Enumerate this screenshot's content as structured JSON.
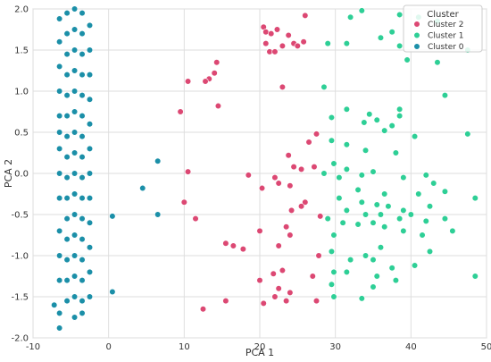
{
  "chart_data": {
    "type": "scatter",
    "title": "",
    "xlabel": "PCA 1",
    "ylabel": "PCA 2",
    "xlim": [
      -10,
      50
    ],
    "ylim": [
      -2.0,
      2.0
    ],
    "xticks": [
      -10,
      0,
      10,
      20,
      30,
      40,
      50
    ],
    "yticks": [
      -2.0,
      -1.5,
      -1.0,
      -0.5,
      0.0,
      0.5,
      1.0,
      1.5,
      2.0
    ],
    "grid": true,
    "legend": {
      "title": "Cluster",
      "position": "top-right"
    },
    "series": [
      {
        "name": "Cluster 2",
        "color": "#dc4873",
        "points": [
          [
            20.5,
            1.78
          ],
          [
            20.8,
            1.72
          ],
          [
            21.5,
            1.7
          ],
          [
            22.3,
            1.75
          ],
          [
            23.0,
            1.55
          ],
          [
            23.8,
            1.68
          ],
          [
            24.5,
            1.58
          ],
          [
            25.0,
            1.55
          ],
          [
            25.8,
            1.6
          ],
          [
            26.0,
            1.92
          ],
          [
            20.8,
            1.58
          ],
          [
            21.3,
            1.48
          ],
          [
            22.0,
            1.48
          ],
          [
            23.0,
            1.05
          ],
          [
            14.0,
            1.22
          ],
          [
            14.3,
            1.35
          ],
          [
            13.3,
            1.15
          ],
          [
            14.5,
            0.82
          ],
          [
            10.5,
            1.12
          ],
          [
            12.8,
            1.12
          ],
          [
            9.5,
            0.75
          ],
          [
            26.5,
            0.38
          ],
          [
            27.5,
            0.48
          ],
          [
            23.8,
            0.22
          ],
          [
            10.5,
            0.02
          ],
          [
            18.5,
            -0.02
          ],
          [
            20.3,
            -0.18
          ],
          [
            22.0,
            -0.05
          ],
          [
            24.5,
            0.08
          ],
          [
            25.5,
            0.05
          ],
          [
            27.2,
            0.08
          ],
          [
            22.5,
            -0.12
          ],
          [
            24.0,
            -0.15
          ],
          [
            26.0,
            -0.35
          ],
          [
            10.0,
            -0.35
          ],
          [
            11.5,
            -0.55
          ],
          [
            24.2,
            -0.45
          ],
          [
            25.5,
            -0.4
          ],
          [
            28.0,
            -0.52
          ],
          [
            23.5,
            -0.65
          ],
          [
            24.0,
            -0.75
          ],
          [
            20.0,
            -0.7
          ],
          [
            22.5,
            -0.88
          ],
          [
            16.5,
            -0.88
          ],
          [
            17.8,
            -0.92
          ],
          [
            15.5,
            -0.85
          ],
          [
            22.5,
            -1.4
          ],
          [
            24.0,
            -1.45
          ],
          [
            27.8,
            -1.0
          ],
          [
            20.0,
            -1.3
          ],
          [
            15.5,
            -1.55
          ],
          [
            12.5,
            -1.65
          ],
          [
            20.5,
            -1.58
          ],
          [
            22.0,
            -1.5
          ],
          [
            23.5,
            -1.55
          ],
          [
            27.5,
            -1.55
          ],
          [
            27.0,
            -1.25
          ],
          [
            23.0,
            -1.18
          ],
          [
            21.8,
            -1.22
          ]
        ]
      },
      {
        "name": "Cluster 1",
        "color": "#2ecf96",
        "points": [
          [
            32.0,
            1.9
          ],
          [
            33.5,
            1.98
          ],
          [
            38.5,
            1.93
          ],
          [
            41.0,
            1.9
          ],
          [
            43.5,
            1.85
          ],
          [
            36.0,
            1.65
          ],
          [
            37.5,
            1.72
          ],
          [
            29.0,
            1.58
          ],
          [
            31.5,
            1.58
          ],
          [
            38.5,
            1.55
          ],
          [
            47.5,
            1.5
          ],
          [
            39.5,
            1.38
          ],
          [
            43.5,
            1.35
          ],
          [
            28.5,
            1.05
          ],
          [
            44.5,
            0.95
          ],
          [
            31.5,
            0.78
          ],
          [
            34.5,
            0.72
          ],
          [
            38.5,
            0.78
          ],
          [
            38.5,
            0.7
          ],
          [
            29.5,
            0.68
          ],
          [
            33.8,
            0.62
          ],
          [
            35.5,
            0.65
          ],
          [
            37.5,
            0.58
          ],
          [
            36.5,
            0.52
          ],
          [
            40.5,
            0.45
          ],
          [
            47.5,
            0.48
          ],
          [
            29.5,
            0.4
          ],
          [
            31.5,
            0.35
          ],
          [
            34.0,
            0.28
          ],
          [
            38.0,
            0.25
          ],
          [
            29.8,
            0.12
          ],
          [
            31.5,
            0.05
          ],
          [
            35.0,
            0.02
          ],
          [
            28.5,
            0.0
          ],
          [
            30.5,
            -0.05
          ],
          [
            33.5,
            -0.02
          ],
          [
            42.0,
            -0.02
          ],
          [
            39.0,
            -0.05
          ],
          [
            43.0,
            -0.12
          ],
          [
            33.0,
            -0.2
          ],
          [
            36.5,
            -0.25
          ],
          [
            41.0,
            -0.25
          ],
          [
            44.5,
            -0.22
          ],
          [
            30.5,
            -0.3
          ],
          [
            33.5,
            -0.35
          ],
          [
            35.5,
            -0.38
          ],
          [
            37.0,
            -0.4
          ],
          [
            39.0,
            -0.45
          ],
          [
            42.5,
            -0.4
          ],
          [
            48.5,
            -0.3
          ],
          [
            31.5,
            -0.45
          ],
          [
            34.0,
            -0.5
          ],
          [
            36.0,
            -0.5
          ],
          [
            38.5,
            -0.55
          ],
          [
            40.0,
            -0.5
          ],
          [
            42.0,
            -0.58
          ],
          [
            44.5,
            -0.55
          ],
          [
            29.0,
            -0.55
          ],
          [
            31.0,
            -0.6
          ],
          [
            33.0,
            -0.62
          ],
          [
            35.0,
            -0.6
          ],
          [
            36.5,
            -0.65
          ],
          [
            39.0,
            -0.7
          ],
          [
            41.5,
            -0.75
          ],
          [
            45.5,
            -0.7
          ],
          [
            29.8,
            -0.75
          ],
          [
            29.5,
            -0.95
          ],
          [
            29.8,
            -1.2
          ],
          [
            32.0,
            -1.05
          ],
          [
            34.0,
            -1.0
          ],
          [
            36.0,
            -0.9
          ],
          [
            42.5,
            -0.95
          ],
          [
            29.5,
            -1.35
          ],
          [
            29.8,
            -1.5
          ],
          [
            31.5,
            -1.2
          ],
          [
            33.5,
            -1.52
          ],
          [
            35.0,
            -1.38
          ],
          [
            35.5,
            -1.25
          ],
          [
            35.0,
            -1.05
          ],
          [
            37.5,
            -1.15
          ],
          [
            38.0,
            -1.3
          ],
          [
            40.5,
            -1.12
          ],
          [
            48.5,
            -1.25
          ]
        ]
      },
      {
        "name": "Cluster 0",
        "color": "#1b8fa8",
        "points": [
          [
            -7.2,
            -1.6
          ],
          [
            -6.5,
            -1.88
          ],
          [
            -6.5,
            -1.7
          ],
          [
            6.5,
            0.15
          ],
          [
            4.5,
            -0.18
          ],
          [
            0.5,
            -0.52
          ],
          [
            6.5,
            -0.5
          ],
          [
            0.5,
            -1.44
          ],
          [
            -6.5,
            1.88
          ],
          [
            -6.5,
            1.6
          ],
          [
            -6.5,
            1.3
          ],
          [
            -6.5,
            1.0
          ],
          [
            -6.5,
            0.7
          ],
          [
            -6.5,
            0.5
          ],
          [
            -6.5,
            0.3
          ],
          [
            -6.5,
            0.0
          ],
          [
            -6.5,
            -0.3
          ],
          [
            -6.5,
            -0.7
          ],
          [
            -6.5,
            -1.0
          ],
          [
            -6.5,
            -1.3
          ],
          [
            -5.5,
            1.95
          ],
          [
            -5.5,
            1.7
          ],
          [
            -5.5,
            1.45
          ],
          [
            -5.5,
            1.2
          ],
          [
            -5.5,
            0.95
          ],
          [
            -5.5,
            0.7
          ],
          [
            -5.5,
            0.45
          ],
          [
            -5.5,
            0.2
          ],
          [
            -5.5,
            -0.05
          ],
          [
            -5.5,
            -0.3
          ],
          [
            -5.5,
            -0.55
          ],
          [
            -5.5,
            -0.8
          ],
          [
            -5.5,
            -1.05
          ],
          [
            -5.5,
            -1.3
          ],
          [
            -5.5,
            -1.55
          ],
          [
            -4.5,
            2.0
          ],
          [
            -4.5,
            1.75
          ],
          [
            -4.5,
            1.5
          ],
          [
            -4.5,
            1.25
          ],
          [
            -4.5,
            1.0
          ],
          [
            -4.5,
            0.75
          ],
          [
            -4.5,
            0.5
          ],
          [
            -4.5,
            0.25
          ],
          [
            -4.5,
            0.0
          ],
          [
            -4.5,
            -0.25
          ],
          [
            -4.5,
            -0.5
          ],
          [
            -4.5,
            -0.75
          ],
          [
            -4.5,
            -1.0
          ],
          [
            -4.5,
            -1.25
          ],
          [
            -4.5,
            -1.5
          ],
          [
            -4.5,
            -1.75
          ],
          [
            -3.5,
            1.95
          ],
          [
            -3.5,
            1.7
          ],
          [
            -3.5,
            1.45
          ],
          [
            -3.5,
            1.2
          ],
          [
            -3.5,
            0.95
          ],
          [
            -3.5,
            0.7
          ],
          [
            -3.5,
            0.45
          ],
          [
            -3.5,
            0.2
          ],
          [
            -3.5,
            -0.05
          ],
          [
            -3.5,
            -0.3
          ],
          [
            -3.5,
            -0.55
          ],
          [
            -3.5,
            -0.8
          ],
          [
            -3.5,
            -1.05
          ],
          [
            -3.5,
            -1.3
          ],
          [
            -3.5,
            -1.55
          ],
          [
            -3.5,
            -1.7
          ],
          [
            -2.5,
            1.8
          ],
          [
            -2.5,
            1.5
          ],
          [
            -2.5,
            1.2
          ],
          [
            -2.5,
            0.9
          ],
          [
            -2.5,
            0.6
          ],
          [
            -2.5,
            0.3
          ],
          [
            -2.5,
            0.0
          ],
          [
            -2.5,
            -0.3
          ],
          [
            -2.5,
            -0.6
          ],
          [
            -2.5,
            -0.9
          ],
          [
            -2.5,
            -1.2
          ],
          [
            -2.5,
            -1.5
          ]
        ]
      }
    ]
  }
}
